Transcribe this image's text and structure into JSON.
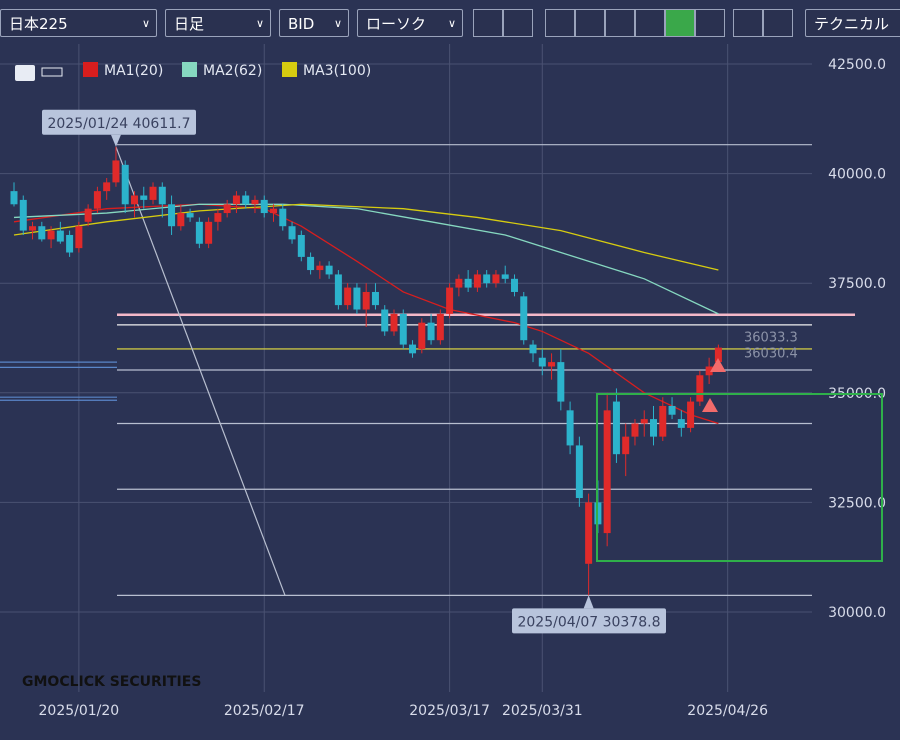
{
  "toolbar": {
    "symbol": "日本225",
    "timeframe": "日足",
    "price_type": "BID",
    "chart_type": "ローソク",
    "technical": "テクニカル"
  },
  "chart_data": {
    "type": "candlestick",
    "x": [
      0,
      1,
      2,
      3,
      4,
      5,
      6,
      7,
      8,
      9,
      10,
      11,
      12,
      13,
      14,
      15,
      16,
      17,
      18,
      19,
      20,
      21,
      22,
      23,
      24,
      25,
      26,
      27,
      28,
      29,
      30,
      31,
      32,
      33,
      34,
      35,
      36,
      37,
      38,
      39,
      40,
      41,
      42,
      43,
      44,
      45,
      46,
      47,
      48,
      49,
      50,
      51,
      52,
      53,
      54,
      55,
      56,
      57,
      58,
      59,
      60,
      61,
      62,
      63,
      64,
      65,
      66,
      67,
      68,
      69,
      70,
      71,
      72,
      73,
      74,
      75,
      76
    ],
    "open": [
      39600,
      39400,
      38700,
      38800,
      38500,
      38700,
      38600,
      38300,
      38900,
      39200,
      39600,
      39800,
      40200,
      39300,
      39500,
      39400,
      39700,
      39300,
      38800,
      39100,
      38900,
      38400,
      38900,
      39100,
      39300,
      39500,
      39300,
      39400,
      39100,
      39200,
      38800,
      38600,
      38100,
      37800,
      37900,
      37700,
      37000,
      37400,
      36900,
      37300,
      36900,
      36400,
      36800,
      36100,
      36000,
      36600,
      36200,
      36800,
      37400,
      37600,
      37400,
      37700,
      37500,
      37700,
      37600,
      37200,
      36100,
      35800,
      35600,
      35700,
      34600,
      33800,
      31100,
      32500,
      31800,
      34800,
      33600,
      34000,
      34300,
      34400,
      34000,
      34700,
      34400,
      34200,
      34800,
      35400,
      35700
    ],
    "high": [
      39800,
      39500,
      38900,
      38900,
      38800,
      38900,
      38700,
      38900,
      39300,
      39700,
      39900,
      40611.7,
      40300,
      39600,
      39700,
      39800,
      39800,
      39500,
      39300,
      39200,
      39000,
      39000,
      39200,
      39400,
      39600,
      39600,
      39500,
      39500,
      39300,
      39300,
      38900,
      38700,
      38200,
      38000,
      38000,
      37800,
      37500,
      37500,
      37500,
      37500,
      37000,
      36900,
      36900,
      36200,
      36700,
      36800,
      36900,
      37500,
      37700,
      37800,
      37800,
      37800,
      37800,
      37900,
      37700,
      37300,
      36200,
      36000,
      35900,
      36000,
      34800,
      34000,
      32700,
      33000,
      35000,
      35100,
      34300,
      34400,
      34600,
      34700,
      34900,
      34900,
      34600,
      34900,
      35500,
      35800,
      36100
    ],
    "low": [
      39250,
      38600,
      38500,
      38450,
      38300,
      38400,
      38100,
      38200,
      38800,
      39100,
      39400,
      39700,
      39100,
      39000,
      39200,
      39300,
      39000,
      38600,
      38700,
      38900,
      38300,
      38300,
      38700,
      39000,
      39100,
      39200,
      39100,
      39000,
      38900,
      38700,
      38400,
      38000,
      37700,
      37600,
      37600,
      36900,
      36900,
      36800,
      36500,
      36900,
      36300,
      36300,
      36000,
      35800,
      35900,
      36100,
      36100,
      36700,
      37200,
      37300,
      37300,
      37400,
      37400,
      37500,
      37200,
      36100,
      35700,
      35400,
      35300,
      34600,
      33600,
      32400,
      30378.8,
      31800,
      31500,
      33400,
      33100,
      33800,
      34000,
      33800,
      33900,
      34400,
      34000,
      34100,
      34700,
      35200,
      35600
    ],
    "close": [
      39300,
      38700,
      38800,
      38500,
      38700,
      38450,
      38200,
      38800,
      39200,
      39600,
      39800,
      40300,
      39300,
      39500,
      39400,
      39700,
      39300,
      38800,
      39100,
      39000,
      38400,
      38900,
      39100,
      39300,
      39500,
      39300,
      39400,
      39100,
      39200,
      38800,
      38500,
      38100,
      37800,
      37900,
      37700,
      37000,
      37400,
      36900,
      37300,
      37000,
      36400,
      36800,
      36100,
      35900,
      36600,
      36200,
      36800,
      37400,
      37600,
      37400,
      37700,
      37500,
      37700,
      37600,
      37300,
      36200,
      35900,
      35600,
      35700,
      34800,
      33800,
      32600,
      32500,
      32000,
      34600,
      33600,
      34000,
      34300,
      34400,
      34000,
      34700,
      34500,
      34200,
      34800,
      35400,
      35600,
      36030.4
    ],
    "up_color": "#e02a2a",
    "down_color": "#2cb3cc",
    "series": [
      {
        "name": "MA1(20)",
        "color": "#d81e1e",
        "x": [
          0,
          10,
          20,
          27,
          31,
          37,
          42,
          47,
          54,
          57,
          62,
          68,
          73,
          76
        ],
        "values": [
          38900,
          39200,
          39300,
          39200,
          38800,
          38000,
          37300,
          36900,
          36600,
          36400,
          35900,
          35000,
          34500,
          34300
        ]
      },
      {
        "name": "MA2(62)",
        "color": "#86d8c0",
        "x": [
          0,
          10,
          20,
          29,
          37,
          45,
          53,
          59,
          68,
          76
        ],
        "values": [
          39000,
          39100,
          39300,
          39300,
          39200,
          38900,
          38600,
          38200,
          37600,
          36800
        ]
      },
      {
        "name": "MA3(100)",
        "color": "#d6cc10",
        "x": [
          0,
          10,
          20,
          31,
          42,
          50,
          59,
          68,
          76
        ],
        "values": [
          38600,
          38900,
          39150,
          39300,
          39200,
          39000,
          38700,
          38200,
          37800
        ]
      }
    ],
    "ylim": [
      29000,
      43500
    ],
    "yticks": [
      {
        "value": 42500,
        "label": "42500.0"
      },
      {
        "value": 40000,
        "label": "40000.0"
      },
      {
        "value": 37500,
        "label": "37500.0"
      },
      {
        "value": 35000,
        "label": "35000.0"
      },
      {
        "value": 32500,
        "label": "32500.0"
      },
      {
        "value": 30000,
        "label": "30000.0"
      }
    ],
    "xlim": [
      -1.51,
      86.1
    ],
    "xticks": [
      {
        "value": 7,
        "label": "2025/01/20"
      },
      {
        "value": 27,
        "label": "2025/02/17"
      },
      {
        "value": 47,
        "label": "2025/03/17"
      },
      {
        "value": 57,
        "label": "2025/03/31"
      },
      {
        "value": 77,
        "label": "2025/04/26"
      }
    ],
    "grid": true,
    "annotations": [
      {
        "text": "2025/01/24 40611.7",
        "x": 11,
        "value": 40611.7
      },
      {
        "text": "2025/04/07 30378.8",
        "x": 62,
        "value": 30378.8
      }
    ],
    "price_labels": [
      {
        "text": "36033.3",
        "value": 36033.3
      },
      {
        "text": "36030.4",
        "value": 36030.4
      }
    ],
    "hlines": [
      {
        "value": 40660,
        "color": "#b8bfd0"
      },
      {
        "value": 35520,
        "color": "#b8bfd0"
      },
      {
        "value": 34300,
        "color": "#b8bfd0"
      },
      {
        "value": 32800,
        "color": "#b8bfd0"
      },
      {
        "value": 30380,
        "color": "#b8bfd0"
      },
      {
        "value": 36780,
        "color": "#f4b8c8"
      },
      {
        "value": 35700,
        "color": "#5a86c8"
      },
      {
        "value": 35580,
        "color": "#5a86c8"
      },
      {
        "value": 34900,
        "color": "#5a86c8"
      },
      {
        "value": 34830,
        "color": "#5a86c8"
      },
      {
        "value": 36000,
        "color": "#e8e040"
      },
      {
        "value": 36550,
        "color": "#f0f0f0"
      }
    ],
    "logo": "GMOCLICK SECURITIES"
  }
}
